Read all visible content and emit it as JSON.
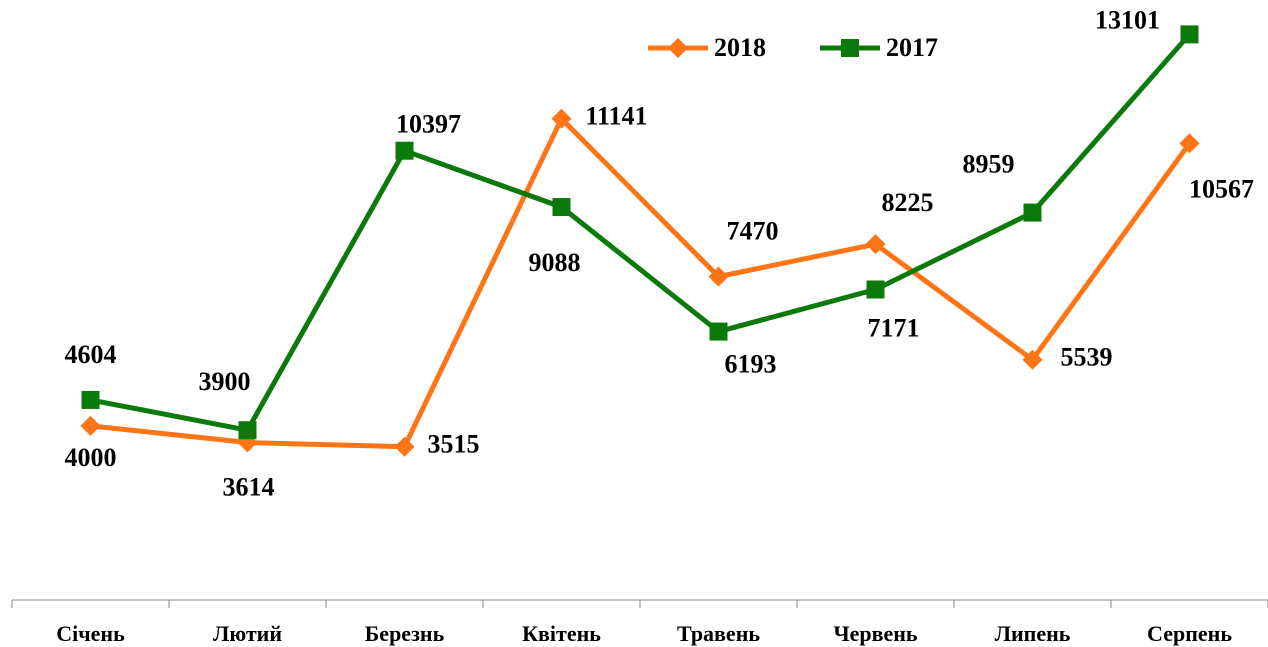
{
  "chart_data": {
    "type": "line",
    "categories": [
      "Січень",
      "Лютий",
      "Березнь",
      "Квітень",
      "Травень",
      "Червень",
      "Липень",
      "Серпень"
    ],
    "series": [
      {
        "name": "2018",
        "color": "#ff7415",
        "marker": "diamond",
        "values": [
          4000,
          3614,
          3515,
          11141,
          7470,
          8225,
          5539,
          10567
        ]
      },
      {
        "name": "2017",
        "color": "#0b7a0b",
        "marker": "square",
        "values": [
          4604,
          3900,
          10397,
          9088,
          6193,
          7171,
          8959,
          13101
        ]
      }
    ],
    "ylim": [
      0,
      13900
    ]
  }
}
